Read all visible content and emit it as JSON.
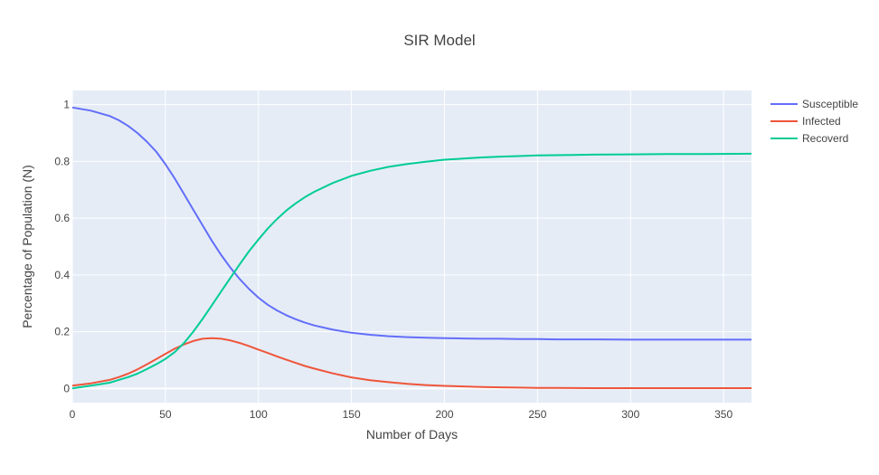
{
  "chart_data": {
    "type": "line",
    "title": "SIR Model",
    "xlabel": "Number of Days",
    "ylabel": "Percentage of Population (N)",
    "xlim": [
      0,
      365
    ],
    "ylim": [
      -0.05,
      1.05
    ],
    "x_ticks": [
      0,
      50,
      100,
      150,
      200,
      250,
      300,
      350
    ],
    "y_ticks": [
      0,
      0.2,
      0.4,
      0.6,
      0.8,
      1
    ],
    "y_tick_labels": [
      "0",
      "0.2",
      "0.4",
      "0.6",
      "0.8",
      "1"
    ],
    "x_tick_labels": [
      "0",
      "50",
      "100",
      "150",
      "200",
      "250",
      "300",
      "350"
    ],
    "grid": true,
    "legend_position": "top-right",
    "background_color": "#E5ECF6",
    "x": [
      0,
      10,
      20,
      25,
      30,
      35,
      40,
      45,
      50,
      55,
      60,
      65,
      70,
      75,
      80,
      85,
      90,
      95,
      100,
      105,
      110,
      115,
      120,
      125,
      130,
      140,
      150,
      160,
      170,
      180,
      190,
      200,
      210,
      220,
      230,
      240,
      250,
      260,
      280,
      300,
      320,
      340,
      365
    ],
    "series": [
      {
        "name": "Susceptible",
        "color": "#636EFA",
        "values": [
          0.99,
          0.979,
          0.96,
          0.945,
          0.925,
          0.9,
          0.87,
          0.835,
          0.79,
          0.74,
          0.685,
          0.63,
          0.575,
          0.52,
          0.47,
          0.425,
          0.385,
          0.35,
          0.32,
          0.295,
          0.275,
          0.258,
          0.244,
          0.232,
          0.222,
          0.207,
          0.196,
          0.189,
          0.184,
          0.181,
          0.179,
          0.177,
          0.176,
          0.175,
          0.175,
          0.174,
          0.174,
          0.173,
          0.173,
          0.172,
          0.172,
          0.172,
          0.172
        ]
      },
      {
        "name": "Infected",
        "color": "#EF553B",
        "values": [
          0.01,
          0.018,
          0.03,
          0.04,
          0.052,
          0.067,
          0.085,
          0.103,
          0.122,
          0.14,
          0.155,
          0.167,
          0.175,
          0.177,
          0.175,
          0.169,
          0.16,
          0.149,
          0.137,
          0.125,
          0.113,
          0.101,
          0.09,
          0.079,
          0.07,
          0.053,
          0.039,
          0.029,
          0.022,
          0.016,
          0.012,
          0.009,
          0.007,
          0.005,
          0.004,
          0.003,
          0.002,
          0.002,
          0.001,
          0.001,
          0.001,
          0.001,
          0.001
        ]
      },
      {
        "name": "Recoverd",
        "color": "#00CC96",
        "values": [
          0.0,
          0.01,
          0.02,
          0.03,
          0.04,
          0.052,
          0.068,
          0.085,
          0.104,
          0.128,
          0.16,
          0.2,
          0.245,
          0.293,
          0.342,
          0.39,
          0.438,
          0.484,
          0.525,
          0.563,
          0.597,
          0.627,
          0.652,
          0.674,
          0.693,
          0.724,
          0.749,
          0.767,
          0.781,
          0.791,
          0.799,
          0.806,
          0.81,
          0.814,
          0.817,
          0.819,
          0.821,
          0.822,
          0.824,
          0.825,
          0.826,
          0.826,
          0.827
        ]
      }
    ]
  }
}
